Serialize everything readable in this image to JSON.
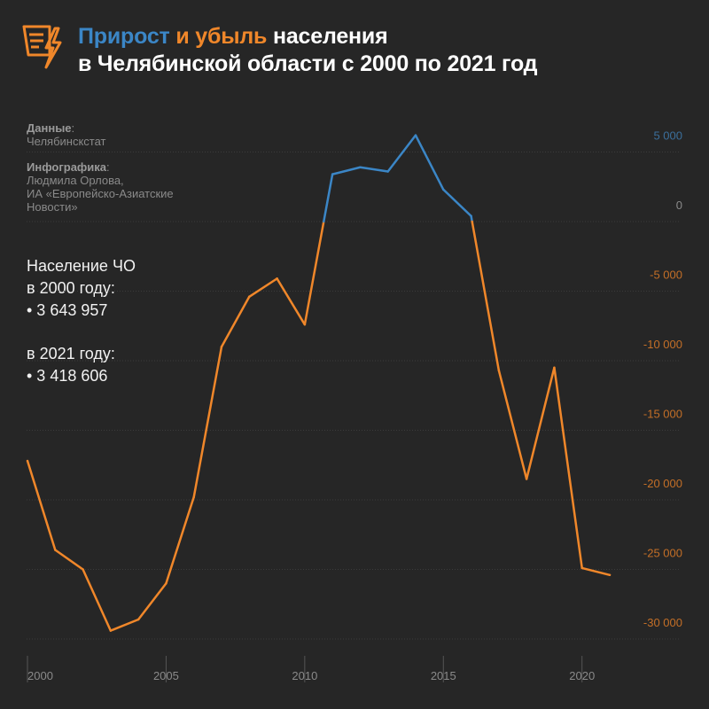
{
  "title": {
    "part1": "Прирост",
    "part2": "и убыль",
    "part3": "населения",
    "line2": "в Челябинской области с 2000 по 2021 год"
  },
  "credits": {
    "data_label": "Данные",
    "data_value": "Челябинскстат",
    "info_label": "Инфографика",
    "info_lines": [
      "Людмила Орлова,",
      "ИА «Европейско-Азиатские",
      "Новости»"
    ]
  },
  "population": {
    "label_2000_a": "Население ЧО",
    "label_2000_b": "в 2000 году:",
    "value_2000": "• 3 643 957",
    "label_2021": "в 2021 году:",
    "value_2021": "• 3 418 606"
  },
  "colors": {
    "positive": "#3b86c6",
    "negative": "#f0872a",
    "background": "#262626"
  },
  "chart_data": {
    "type": "line",
    "title": "Прирост и убыль населения в Челябинской области с 2000 по 2021 год",
    "x": [
      2000,
      2001,
      2002,
      2003,
      2004,
      2005,
      2006,
      2007,
      2008,
      2009,
      2010,
      2011,
      2012,
      2013,
      2014,
      2015,
      2016,
      2017,
      2018,
      2019,
      2020,
      2021
    ],
    "values": [
      -17200,
      -23600,
      -25000,
      -29400,
      -28600,
      -26000,
      -19800,
      -9000,
      -5400,
      -4100,
      -7400,
      3400,
      3900,
      3600,
      6200,
      2300,
      400,
      -10700,
      -18500,
      -10500,
      -24900,
      -25400
    ],
    "ylim": [
      -31000,
      6500
    ],
    "yticks": [
      5000,
      0,
      -5000,
      -10000,
      -15000,
      -20000,
      -25000,
      -30000
    ],
    "ytick_labels": [
      "5 000",
      "0",
      "-5 000",
      "-10 000",
      "-15 000",
      "-20 000",
      "-25 000",
      "-30 000"
    ],
    "xticks": [
      2000,
      2005,
      2010,
      2015,
      2020
    ],
    "xtick_labels": [
      "2000",
      "2005",
      "2010",
      "2015",
      "2020"
    ],
    "xlabel": "",
    "ylabel": ""
  }
}
